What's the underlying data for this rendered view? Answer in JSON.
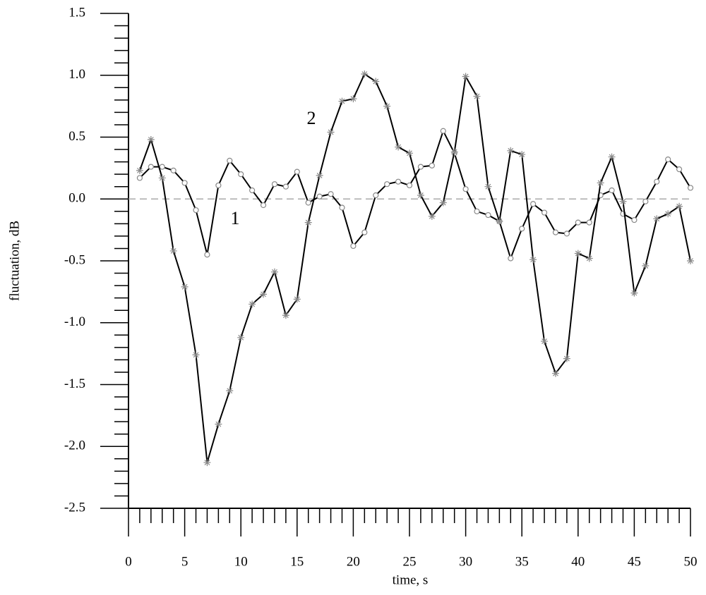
{
  "chart_data": {
    "type": "line",
    "x_label": "time, s",
    "y_label": "fluctuation, dB",
    "annotations": [
      "1",
      "2"
    ],
    "x": [
      1,
      2,
      3,
      4,
      5,
      6,
      7,
      8,
      9,
      10,
      11,
      12,
      13,
      14,
      15,
      16,
      17,
      18,
      19,
      20,
      21,
      22,
      23,
      24,
      25,
      26,
      27,
      28,
      29,
      30,
      31,
      32,
      33,
      34,
      35,
      36,
      37,
      38,
      39,
      40,
      41,
      42,
      43,
      44,
      45,
      46,
      47,
      48,
      49,
      50
    ],
    "series": [
      {
        "color": "#000000",
        "marker": "circle",
        "marker_color": "#888888",
        "values": [
          0.17,
          0.26,
          0.26,
          0.23,
          0.13,
          -0.09,
          -0.45,
          0.11,
          0.31,
          0.2,
          0.07,
          -0.05,
          0.12,
          0.1,
          0.22,
          -0.03,
          0.02,
          0.04,
          -0.07,
          -0.38,
          -0.27,
          0.03,
          0.12,
          0.14,
          0.11,
          0.26,
          0.27,
          0.55,
          0.37,
          0.08,
          -0.1,
          -0.13,
          -0.18,
          -0.48,
          -0.24,
          -0.04,
          -0.11,
          -0.27,
          -0.28,
          -0.19,
          -0.19,
          0.03,
          0.07,
          -0.12,
          -0.17,
          -0.02,
          0.14,
          0.32,
          0.24,
          0.09
        ]
      },
      {
        "color": "#000000",
        "marker": "asterisk",
        "marker_color": "#888888",
        "values": [
          0.23,
          0.48,
          0.17,
          -0.42,
          -0.71,
          -1.26,
          -2.13,
          -1.82,
          -1.55,
          -1.12,
          -0.85,
          -0.77,
          -0.59,
          -0.94,
          -0.81,
          -0.19,
          0.19,
          0.54,
          0.79,
          0.81,
          1.01,
          0.95,
          0.75,
          0.42,
          0.37,
          0.03,
          -0.14,
          -0.03,
          0.38,
          0.99,
          0.83,
          0.1,
          -0.18,
          0.39,
          0.36,
          -0.49,
          -1.15,
          -1.41,
          -1.29,
          -0.44,
          -0.48,
          0.13,
          0.34,
          -0.02,
          -0.76,
          -0.54,
          -0.16,
          -0.12,
          -0.06,
          -0.5
        ]
      }
    ],
    "xlim": [
      0,
      50
    ],
    "xticks": [
      0,
      5,
      10,
      15,
      20,
      25,
      30,
      35,
      40,
      45,
      50
    ],
    "ylim": [
      -2.5,
      1.5
    ],
    "yticks": [
      1.5,
      {
        "value": 1,
        "label": "1.0"
      },
      0.5,
      {
        "value": 0,
        "label": "0.0"
      },
      -0.5,
      {
        "value": -1,
        "label": "-1.0"
      },
      -1.5,
      {
        "value": -2,
        "label": "-2.0"
      },
      -2.5
    ],
    "hline": 0,
    "hline_color": "#aaaaaa"
  }
}
